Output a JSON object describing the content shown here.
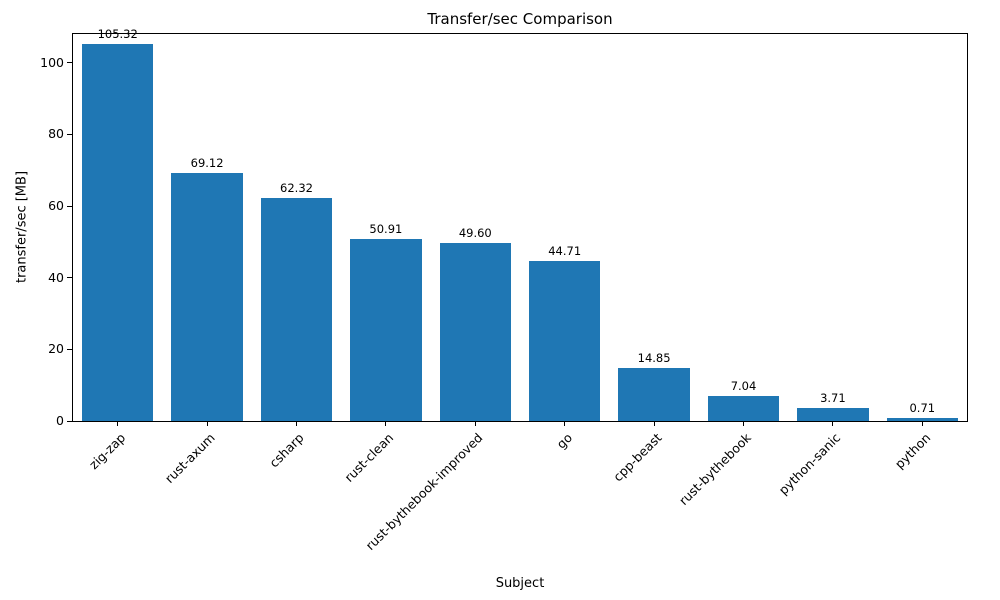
{
  "chart_data": {
    "type": "bar",
    "title": "Transfer/sec Comparison",
    "xlabel": "Subject",
    "ylabel": "transfer/sec [MB]",
    "categories": [
      "zig-zap",
      "rust-axum",
      "csharp",
      "rust-clean",
      "rust-bythebook-improved",
      "go",
      "cpp-beast",
      "rust-bythebook",
      "python-sanic",
      "python"
    ],
    "values": [
      105.32,
      69.12,
      62.32,
      50.91,
      49.6,
      44.71,
      14.85,
      7.04,
      3.71,
      0.71
    ],
    "value_labels": [
      "105.32",
      "69.12",
      "62.32",
      "50.91",
      "49.60",
      "44.71",
      "14.85",
      "7.04",
      "3.71",
      "0.71"
    ],
    "ylim": [
      0,
      108
    ],
    "yticks": [
      0,
      20,
      40,
      60,
      80,
      100
    ],
    "bar_color": "#1f77b4",
    "bar_width_fraction": 0.8,
    "grid": false,
    "legend_position": "none"
  }
}
